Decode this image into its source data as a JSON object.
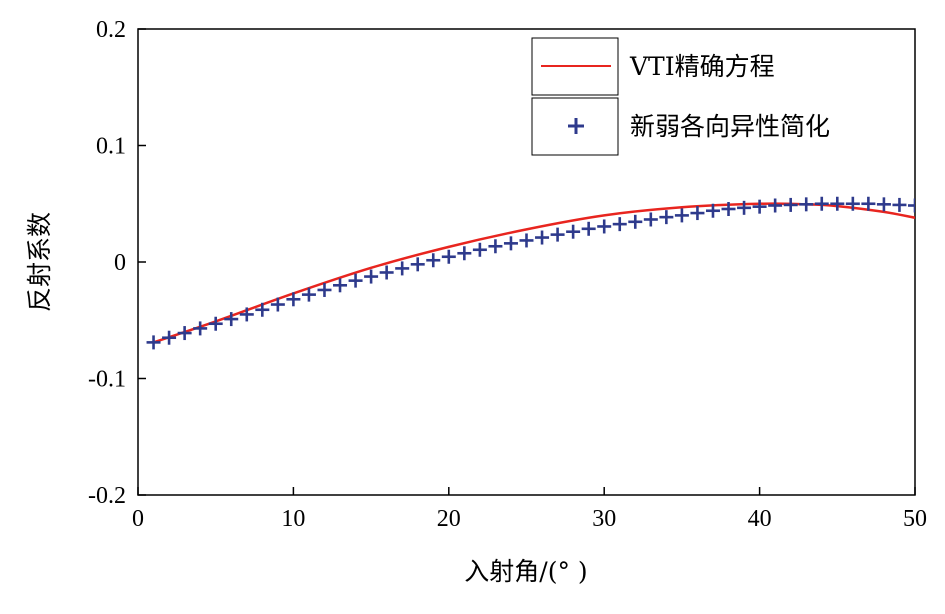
{
  "chart_data": {
    "type": "line",
    "xlabel": "入射角/(°  )",
    "ylabel": "反射系数",
    "xlim": [
      0,
      50
    ],
    "ylim": [
      -0.2,
      0.2
    ],
    "xticks": [
      "0",
      "10",
      "20",
      "30",
      "40",
      "50"
    ],
    "yticks": [
      "0.2",
      "0.1",
      "0",
      "-0.1",
      "-0.2"
    ],
    "grid": false,
    "legend_position": "top-right",
    "series": [
      {
        "name": "VTI精确方程",
        "style": "line",
        "color": "#e8251f",
        "x": [
          1,
          5,
          10,
          15,
          20,
          25,
          30,
          35,
          40,
          43,
          45,
          48,
          50
        ],
        "y": [
          -0.069,
          -0.051,
          -0.027,
          -0.005,
          0.013,
          0.028,
          0.04,
          0.047,
          0.05,
          0.0495,
          0.048,
          0.043,
          0.038
        ]
      },
      {
        "name": "新弱各向异性简化",
        "style": "markers-plus",
        "color": "#2e3a8c",
        "x": [
          1,
          2,
          3,
          4,
          5,
          6,
          7,
          8,
          9,
          10,
          11,
          12,
          13,
          14,
          15,
          16,
          17,
          18,
          19,
          20,
          21,
          22,
          23,
          24,
          25,
          26,
          27,
          28,
          29,
          30,
          31,
          32,
          33,
          34,
          35,
          36,
          37,
          38,
          39,
          40,
          41,
          42,
          43,
          44,
          45,
          46,
          47,
          48,
          49,
          50
        ],
        "y": [
          -0.069,
          -0.065,
          -0.061,
          -0.057,
          -0.053,
          -0.049,
          -0.045,
          -0.041,
          -0.0365,
          -0.032,
          -0.028,
          -0.024,
          -0.02,
          -0.016,
          -0.0125,
          -0.009,
          -0.0055,
          -0.002,
          0.0015,
          0.0045,
          0.0075,
          0.0105,
          0.0135,
          0.016,
          0.0185,
          0.021,
          0.0235,
          0.026,
          0.0285,
          0.0305,
          0.0325,
          0.0345,
          0.0365,
          0.0385,
          0.04,
          0.042,
          0.044,
          0.0455,
          0.0465,
          0.0475,
          0.0485,
          0.049,
          0.0495,
          0.05,
          0.05,
          0.05,
          0.05,
          0.0495,
          0.049,
          0.0485
        ]
      }
    ]
  }
}
